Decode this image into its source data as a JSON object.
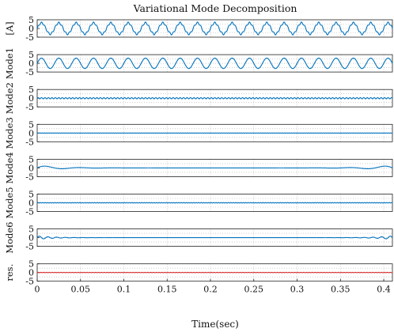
{
  "chart_data": {
    "type": "line",
    "title": "Variational Mode Decomposition",
    "xlabel": "Time(sec)",
    "xlim": [
      0,
      0.41
    ],
    "x_ticks": [
      0,
      0.05,
      0.1,
      0.15,
      0.2,
      0.25,
      0.3,
      0.35,
      0.4
    ],
    "x_tick_labels": [
      "0",
      "0.05",
      "0.1",
      "0.15",
      "0.2",
      "0.25",
      "0.3",
      "0.35",
      "0.4"
    ],
    "ylim": [
      -5,
      5
    ],
    "y_ticks": [
      5,
      0,
      -5
    ],
    "y_tick_labels": [
      "5",
      "0",
      "-5"
    ],
    "grid": true,
    "series_color": "#0072bd",
    "residual_color": "#d62728",
    "panels": [
      {
        "ylabel": "[A]",
        "color": "#0072bd",
        "signal": {
          "kind": "sum",
          "components": [
            {
              "amp": 3.2,
              "freq": 50
            },
            {
              "amp": 0.5,
              "freq": 250
            }
          ]
        }
      },
      {
        "ylabel": "Mode1",
        "color": "#0072bd",
        "signal": {
          "kind": "sine",
          "amp": 3.0,
          "freq": 50
        }
      },
      {
        "ylabel": "Mode2",
        "color": "#0072bd",
        "signal": {
          "kind": "sine",
          "amp": 0.35,
          "freq": 250
        }
      },
      {
        "ylabel": "Mode3",
        "color": "#0072bd",
        "signal": {
          "kind": "sine",
          "amp": 0.08,
          "freq": 400
        }
      },
      {
        "ylabel": "Mode4",
        "color": "#0072bd",
        "signal": {
          "kind": "edge",
          "amp": 1.5,
          "freq": 25,
          "width": 0.025
        }
      },
      {
        "ylabel": "Mode5",
        "color": "#0072bd",
        "signal": {
          "kind": "sine",
          "amp": 0.15,
          "freq": 350
        }
      },
      {
        "ylabel": "Mode6",
        "color": "#0072bd",
        "signal": {
          "kind": "edge",
          "amp": 1.0,
          "freq": 100,
          "width": 0.018
        }
      },
      {
        "ylabel": "res.",
        "color": "#d62728",
        "signal": {
          "kind": "sine",
          "amp": 0.1,
          "freq": 300
        }
      }
    ]
  }
}
